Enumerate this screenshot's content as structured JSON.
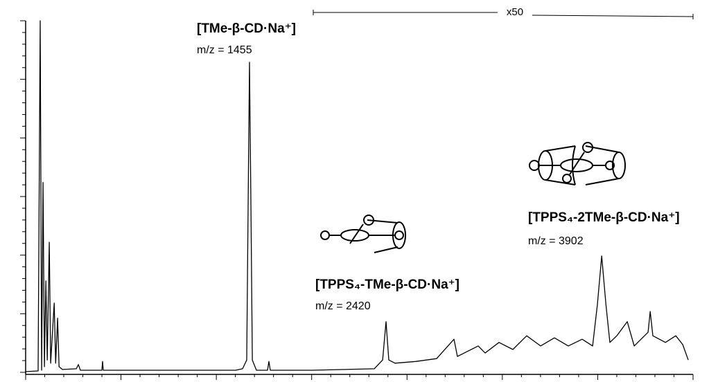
{
  "chart_data": {
    "type": "line",
    "color": "#000000",
    "xlim": [
      -128,
      4591
    ],
    "ylim": [
      0,
      100
    ],
    "x": [
      -128,
      -40,
      -25,
      -15,
      -5,
      5,
      15,
      25,
      39,
      49,
      74,
      84,
      98,
      108,
      132,
      230,
      245,
      259,
      411,
      416,
      421,
      1357,
      1406,
      1435,
      1445,
      1455,
      1465,
      1475,
      1504,
      1582,
      1592,
      1602,
      1896,
      2337,
      2396,
      2420,
      2440,
      2484,
      2631,
      2778,
      2901,
      2925,
      3072,
      3121,
      3219,
      3317,
      3415,
      3513,
      3611,
      3709,
      3807,
      3881,
      3915,
      3945,
      3975,
      4003,
      4052,
      4126,
      4175,
      4273,
      4288,
      4307,
      4396,
      4469,
      4518,
      4557
    ],
    "values": [
      0.2,
      0.4,
      100,
      0.6,
      54,
      1.6,
      26,
      3.5,
      37,
      2.6,
      19.7,
      2.6,
      15.4,
      1.6,
      0.8,
      1,
      2.2,
      0.6,
      0.6,
      3.1,
      0.6,
      0.6,
      1,
      3.5,
      46.9,
      88.2,
      46.9,
      3.5,
      0.6,
      0.6,
      3.1,
      0.6,
      0.6,
      1,
      3.5,
      14.4,
      3.5,
      2.6,
      3.1,
      3.9,
      9.4,
      4.5,
      7.5,
      5.5,
      8.5,
      6.5,
      10.4,
      7.5,
      9.8,
      7.5,
      9.4,
      7.5,
      19.3,
      33.1,
      19.3,
      8.5,
      10.4,
      14.4,
      7.5,
      11.4,
      17.3,
      10.4,
      8.5,
      10.4,
      7.9,
      3.5
    ],
    "zoom_label": "x50",
    "annotations": [
      {
        "label": "[TMe-β-CD·Na⁺]",
        "mz": "m/z = 1455"
      },
      {
        "label": "[TPPS₄-TMe-β-CD·Na⁺]",
        "mz": "m/z = 2420"
      },
      {
        "label": "[TPPS₄-2TMe-β-CD·Na⁺]",
        "mz": "m/z = 3902"
      }
    ]
  }
}
